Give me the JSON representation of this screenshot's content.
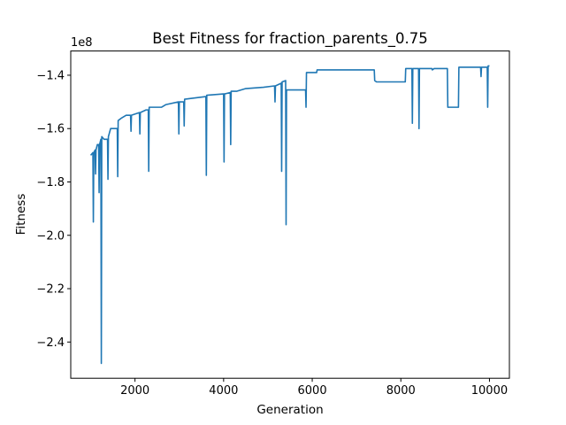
{
  "chart_data": {
    "type": "line",
    "title": "Best Fitness for fraction_parents_0.75",
    "x_label": "Generation",
    "y_label": "Fitness",
    "y_offset_text": "1e8",
    "x": [
      1000,
      1050,
      1060,
      1070,
      1100,
      1110,
      1120,
      1150,
      1180,
      1190,
      1200,
      1230,
      1240,
      1250,
      1300,
      1380,
      1390,
      1400,
      1450,
      1600,
      1610,
      1620,
      1700,
      1800,
      1900,
      1910,
      1920,
      2100,
      2110,
      2120,
      2250,
      2300,
      2310,
      2320,
      2600,
      2700,
      2980,
      2990,
      3000,
      3100,
      3110,
      3120,
      3600,
      3610,
      3620,
      4000,
      4010,
      4020,
      4150,
      4160,
      4170,
      4300,
      4500,
      4900,
      5150,
      5160,
      5170,
      5300,
      5310,
      5320,
      5400,
      5410,
      5420,
      5850,
      5860,
      5870,
      6100,
      6110,
      7400,
      7410,
      7450,
      8100,
      8110,
      8250,
      8260,
      8270,
      8400,
      8410,
      8420,
      8700,
      8710,
      8750,
      9050,
      9060,
      9300,
      9310,
      9800,
      9810,
      9820,
      9950,
      9960,
      9970,
      10000
    ],
    "series": [
      {
        "color": "#1f77b4",
        "values": [
          -1.7,
          -1.69,
          -1.95,
          -1.69,
          -1.68,
          -1.77,
          -1.68,
          -1.66,
          -1.66,
          -1.84,
          -1.66,
          -1.64,
          -2.48,
          -1.63,
          -1.64,
          -1.64,
          -1.79,
          -1.63,
          -1.6,
          -1.6,
          -1.78,
          -1.57,
          -1.56,
          -1.55,
          -1.55,
          -1.61,
          -1.55,
          -1.54,
          -1.62,
          -1.54,
          -1.53,
          -1.53,
          -1.76,
          -1.52,
          -1.52,
          -1.51,
          -1.5,
          -1.62,
          -1.5,
          -1.5,
          -1.59,
          -1.49,
          -1.48,
          -1.775,
          -1.475,
          -1.47,
          -1.725,
          -1.47,
          -1.465,
          -1.66,
          -1.46,
          -1.46,
          -1.45,
          -1.445,
          -1.44,
          -1.5,
          -1.44,
          -1.43,
          -1.76,
          -1.425,
          -1.42,
          -1.96,
          -1.455,
          -1.455,
          -1.52,
          -1.39,
          -1.39,
          -1.38,
          -1.38,
          -1.42,
          -1.425,
          -1.425,
          -1.375,
          -1.375,
          -1.58,
          -1.375,
          -1.375,
          -1.6,
          -1.375,
          -1.375,
          -1.38,
          -1.375,
          -1.375,
          -1.52,
          -1.52,
          -1.37,
          -1.37,
          -1.405,
          -1.37,
          -1.37,
          -1.52,
          -1.365,
          -1.365
        ]
      }
    ],
    "xlim": [
      550,
      10450
    ],
    "ylim": [
      -2.5358,
      -1.3092
    ],
    "xticks": [
      2000,
      4000,
      6000,
      8000,
      10000
    ],
    "yticks": [
      {
        "value": -2.4,
        "label": "−2.4"
      },
      {
        "value": -2.2,
        "label": "−2.2"
      },
      {
        "value": -2.0,
        "label": "−2.0"
      },
      {
        "value": -1.8,
        "label": "−1.8"
      },
      {
        "value": -1.6,
        "label": "−1.6"
      },
      {
        "value": -1.4,
        "label": "−1.4"
      }
    ]
  }
}
